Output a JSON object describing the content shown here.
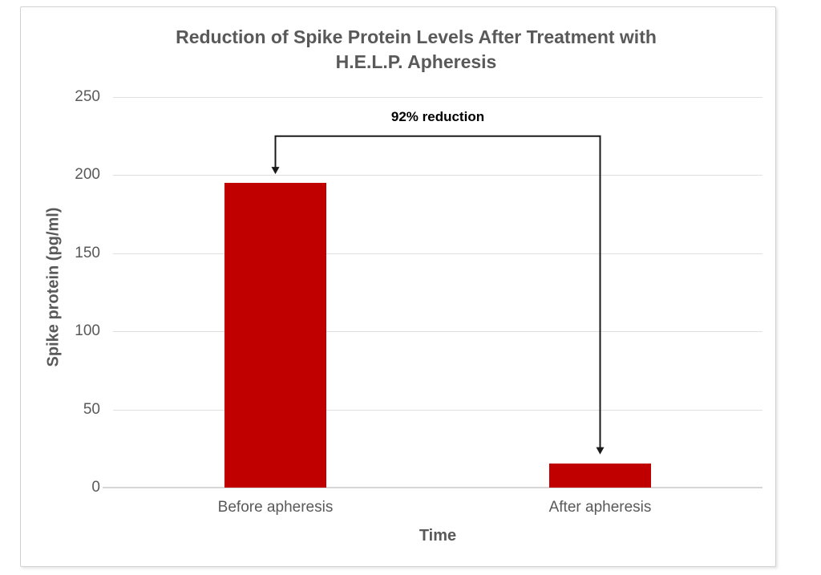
{
  "chart_data": {
    "type": "bar",
    "title": "Reduction of Spike Protein Levels After Treatment with H.E.L.P. Apheresis",
    "title_lines": [
      "Reduction of Spike Protein Levels After Treatment with",
      "H.E.L.P. Apheresis"
    ],
    "categories": [
      "Before apheresis",
      "After apheresis"
    ],
    "values": [
      195,
      15.6
    ],
    "xlabel": "Time",
    "ylabel": "Spike protein (pg/ml)",
    "ylim": [
      0,
      250
    ],
    "yticks": [
      0,
      50,
      100,
      150,
      200,
      250
    ],
    "grid": true,
    "legend": false,
    "bar_color": "#c00000",
    "annotation": {
      "text": "92% reduction",
      "bracket_value": 225,
      "arrow_color": "#1a1a1a"
    }
  },
  "colors": {
    "title_text": "#595959",
    "axis_text": "#595959",
    "gridline": "#e0e0e0",
    "axis_line": "#d6d6d6",
    "panel_border": "#d2d2d2",
    "background": "#ffffff"
  }
}
